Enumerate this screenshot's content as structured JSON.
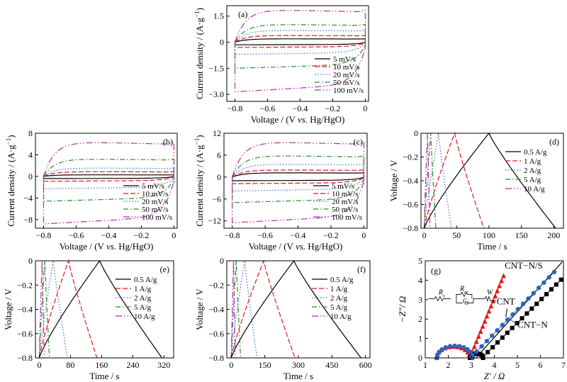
{
  "chart_data": [
    {
      "panel": "a",
      "type": "line",
      "label": "(a)",
      "xlabel_parts": [
        "Voltage / (V ",
        "vs.",
        " Hg/HgO)"
      ],
      "ylabel_parts": [
        "Current density / (A·g",
        "−1",
        ")"
      ],
      "xlim": [
        -0.85,
        0.02
      ],
      "ylim": [
        -3.4,
        2.1
      ],
      "xticks": [
        -0.8,
        -0.6,
        -0.4,
        -0.2,
        0
      ],
      "xticklabels": [
        "−0.8",
        "−0.6",
        "−0.4",
        "−0.2",
        "0"
      ],
      "yticks": [
        -3.0,
        -1.5,
        0,
        1.5
      ],
      "yticklabels": [
        "−3.0",
        "−1.5",
        "0",
        "1.5"
      ],
      "legend": {
        "position": "lower-right"
      },
      "series": [
        {
          "name": "5 mV/s",
          "upper": 0.2,
          "lower": -0.15,
          "color": "#000000",
          "dash": ""
        },
        {
          "name": "10 mV/s",
          "upper": 0.4,
          "lower": -0.3,
          "color": "#e0191a",
          "dash": "7,3"
        },
        {
          "name": "20 mV/s",
          "upper": 0.7,
          "lower": -0.7,
          "color": "#3b6fd4",
          "dash": "1.5,2.5"
        },
        {
          "name": "50 mV/s",
          "upper": 1.05,
          "lower": -1.5,
          "color": "#2e8b2e",
          "dash": "7,3,1.5,3"
        },
        {
          "name": "100 mV/s",
          "upper": 1.9,
          "lower": -2.85,
          "color": "#b030b0",
          "dash": "9,3,1.5,3,1.5,3"
        }
      ]
    },
    {
      "panel": "b",
      "type": "line",
      "label": "(b)",
      "xlabel_parts": [
        "Voltage / (V ",
        "vs.",
        " Hg/HgO)"
      ],
      "ylabel_parts": [
        "Current density / (A·g",
        "−1",
        ")"
      ],
      "xlim": [
        -0.85,
        0.02
      ],
      "ylim": [
        -9.6,
        8
      ],
      "xticks": [
        -0.8,
        -0.6,
        -0.4,
        -0.2,
        0
      ],
      "xticklabels": [
        "−0.8",
        "−0.6",
        "−0.4",
        "−0.2",
        "0"
      ],
      "yticks": [
        -8,
        -4,
        0,
        4,
        8
      ],
      "yticklabels": [
        "−8",
        "−4",
        "0",
        "4",
        "8"
      ],
      "legend": {
        "position": "lower-right"
      },
      "series": [
        {
          "name": "5 mV/s",
          "upper": 0.3,
          "lower": -0.4,
          "color": "#000000",
          "dash": ""
        },
        {
          "name": "10 mV/s",
          "upper": 0.9,
          "lower": -0.9,
          "color": "#e0191a",
          "dash": "7,3"
        },
        {
          "name": "20 mV/s",
          "upper": 1.6,
          "lower": -2.3,
          "color": "#3b6fd4",
          "dash": "1.5,2.5"
        },
        {
          "name": "50 mV/s",
          "upper": 3.3,
          "lower": -4.6,
          "color": "#2e8b2e",
          "dash": "7,3,1.5,3"
        },
        {
          "name": "100 mV/s",
          "upper": 6.5,
          "lower": -8.8,
          "color": "#b030b0",
          "dash": "9,3,1.5,3,1.5,3"
        }
      ]
    },
    {
      "panel": "c",
      "type": "line",
      "label": "(c)",
      "xlabel_parts": [
        "Voltage / (V ",
        "vs.",
        " Hg/HgO)"
      ],
      "ylabel_parts": [
        "Current density / (A·g",
        "−1",
        ")"
      ],
      "xlim": [
        -0.85,
        0.02
      ],
      "ylim": [
        -14,
        12
      ],
      "xticks": [
        -0.8,
        -0.6,
        -0.4,
        -0.2,
        0
      ],
      "xticklabels": [
        "−0.8",
        "−0.6",
        "−0.4",
        "−0.2",
        "0"
      ],
      "yticks": [
        -12,
        -6,
        0,
        6,
        12
      ],
      "yticklabels": [
        "−12",
        "−6",
        "0",
        "6",
        "12"
      ],
      "legend": {
        "position": "lower-right"
      },
      "series": [
        {
          "name": "5 mV/s",
          "upper": 1.2,
          "lower": -1.0,
          "color": "#000000",
          "dash": ""
        },
        {
          "name": "10 mV/s",
          "upper": 2.0,
          "lower": -1.8,
          "color": "#e0191a",
          "dash": "7,3"
        },
        {
          "name": "20 mV/s",
          "upper": 3.6,
          "lower": -3.8,
          "color": "#3b6fd4",
          "dash": "1.5,2.5"
        },
        {
          "name": "50 mV/s",
          "upper": 6.0,
          "lower": -7.0,
          "color": "#2e8b2e",
          "dash": "7,3,1.5,3"
        },
        {
          "name": "100 mV/s",
          "upper": 9.8,
          "lower": -12.5,
          "color": "#b030b0",
          "dash": "9,3,1.5,3,1.5,3"
        }
      ]
    },
    {
      "panel": "d",
      "type": "line",
      "label": "(d)",
      "xlabel": "Time / s",
      "ylabel": "Voltage / V",
      "xlim": [
        -5,
        215
      ],
      "ylim": [
        -0.8,
        0
      ],
      "xticks": [
        0,
        50,
        100,
        150,
        200
      ],
      "xticklabels": [
        "0",
        "50",
        "100",
        "150",
        "200"
      ],
      "yticks": [
        0,
        -0.2,
        -0.4,
        -0.6,
        -0.8
      ],
      "yticklabels": [
        "0",
        "−0.2",
        "−0.4",
        "−0.6",
        "−0.8"
      ],
      "legend": {
        "position": "right"
      },
      "series": [
        {
          "name": "0.5 A/g",
          "charge_time": 100,
          "discharge_time": 103,
          "color": "#000000",
          "dash": ""
        },
        {
          "name": "1 A/g",
          "charge_time": 47,
          "discharge_time": 45,
          "color": "#e0191a",
          "dash": "7,3"
        },
        {
          "name": "2 A/g",
          "charge_time": 22,
          "discharge_time": 20,
          "color": "#3b6fd4",
          "dash": "1.5,2.5"
        },
        {
          "name": "5 A/g",
          "charge_time": 10,
          "discharge_time": 8,
          "color": "#2e8b2e",
          "dash": "7,3,1.5,3"
        },
        {
          "name": "10 A/g",
          "charge_time": 5,
          "discharge_time": 4,
          "color": "#b030b0",
          "dash": "9,3,1.5,3,1.5,3"
        }
      ]
    },
    {
      "panel": "e",
      "type": "line",
      "label": "(e)",
      "xlabel": "Time / s",
      "ylabel": "Voltage / V",
      "xlim": [
        -10,
        345
      ],
      "ylim": [
        -0.8,
        0
      ],
      "xticks": [
        0,
        80,
        160,
        240,
        320
      ],
      "xticklabels": [
        "0",
        "80",
        "160",
        "240",
        "320"
      ],
      "yticks": [
        0,
        -0.2,
        -0.4,
        -0.6,
        -0.8
      ],
      "yticklabels": [
        "0",
        "−0.2",
        "−0.4",
        "−0.6",
        "−0.8"
      ],
      "legend": {
        "position": "right"
      },
      "series": [
        {
          "name": "0.5 A/g",
          "charge_time": 155,
          "discharge_time": 160,
          "color": "#000000",
          "dash": ""
        },
        {
          "name": "1 A/g",
          "charge_time": 75,
          "discharge_time": 73,
          "color": "#e0191a",
          "dash": "7,3"
        },
        {
          "name": "2 A/g",
          "charge_time": 36,
          "discharge_time": 36,
          "color": "#3b6fd4",
          "dash": "1.5,2.5"
        },
        {
          "name": "5 A/g",
          "charge_time": 14,
          "discharge_time": 12,
          "color": "#2e8b2e",
          "dash": "7,3,1.5,3"
        },
        {
          "name": "10 A/g",
          "charge_time": 7,
          "discharge_time": 6,
          "color": "#b030b0",
          "dash": "9,3,1.5,3,1.5,3"
        }
      ]
    },
    {
      "panel": "f",
      "type": "line",
      "label": "(f)",
      "xlabel": "Time / s",
      "ylabel": "Voltage / V",
      "xlim": [
        -20,
        620
      ],
      "ylim": [
        -0.8,
        0
      ],
      "xticks": [
        0,
        150,
        300,
        450,
        600
      ],
      "xticklabels": [
        "0",
        "150",
        "300",
        "450",
        "600"
      ],
      "yticks": [
        0,
        -0.2,
        -0.4,
        -0.6,
        -0.8
      ],
      "yticklabels": [
        "0",
        "−0.2",
        "−0.4",
        "−0.6",
        "−0.8"
      ],
      "legend": {
        "position": "right"
      },
      "series": [
        {
          "name": "0.5 A/g",
          "charge_time": 280,
          "discharge_time": 300,
          "color": "#000000",
          "dash": ""
        },
        {
          "name": "1 A/g",
          "charge_time": 145,
          "discharge_time": 140,
          "color": "#e0191a",
          "dash": "7,3"
        },
        {
          "name": "2 A/g",
          "charge_time": 60,
          "discharge_time": 55,
          "color": "#3b6fd4",
          "dash": "1.5,2.5"
        },
        {
          "name": "5 A/g",
          "charge_time": 22,
          "discharge_time": 20,
          "color": "#2e8b2e",
          "dash": "7,3,1.5,3"
        },
        {
          "name": "10 A/g",
          "charge_time": 10,
          "discharge_time": 8,
          "color": "#b030b0",
          "dash": "9,3,1.5,3,1.5,3"
        }
      ]
    },
    {
      "panel": "g",
      "type": "scatter",
      "label": "(g)",
      "xlabel": "Z′ / Ω",
      "ylabel": "−Z″/ Ω",
      "xlim": [
        1,
        7
      ],
      "ylim": [
        0,
        5
      ],
      "xticks": [
        1,
        2,
        3,
        4,
        5,
        6,
        7
      ],
      "xticklabels": [
        "1",
        "2",
        "3",
        "4",
        "5",
        "6",
        "7"
      ],
      "yticks": [
        0,
        1,
        2,
        3,
        4,
        5
      ],
      "yticklabels": [
        "0",
        "1",
        "2",
        "3",
        "4",
        "5"
      ],
      "circuit_labels": [
        "R",
        "s",
        "R",
        "ct",
        "C",
        "W"
      ],
      "series": [
        {
          "name": "CNT−N/S",
          "color": "#e0191a",
          "marker": "triangle",
          "x0": 1.5,
          "r": 0.72,
          "tail_start": 2.95,
          "tail_slope": 3.2,
          "x_end": 4.4
        },
        {
          "name": "CNT",
          "color": "#000000",
          "marker": "square",
          "x0": 2.95,
          "r": 0.28,
          "tail_start": 3.5,
          "tail_slope": 1.3,
          "x_end": 6.9
        },
        {
          "name": "CNT−N",
          "color": "#2f63b8",
          "marker": "circle",
          "x0": 1.5,
          "r": 0.78,
          "tail_start": 3.0,
          "tail_slope": 1.35,
          "x_end": 6.6
        }
      ]
    }
  ]
}
